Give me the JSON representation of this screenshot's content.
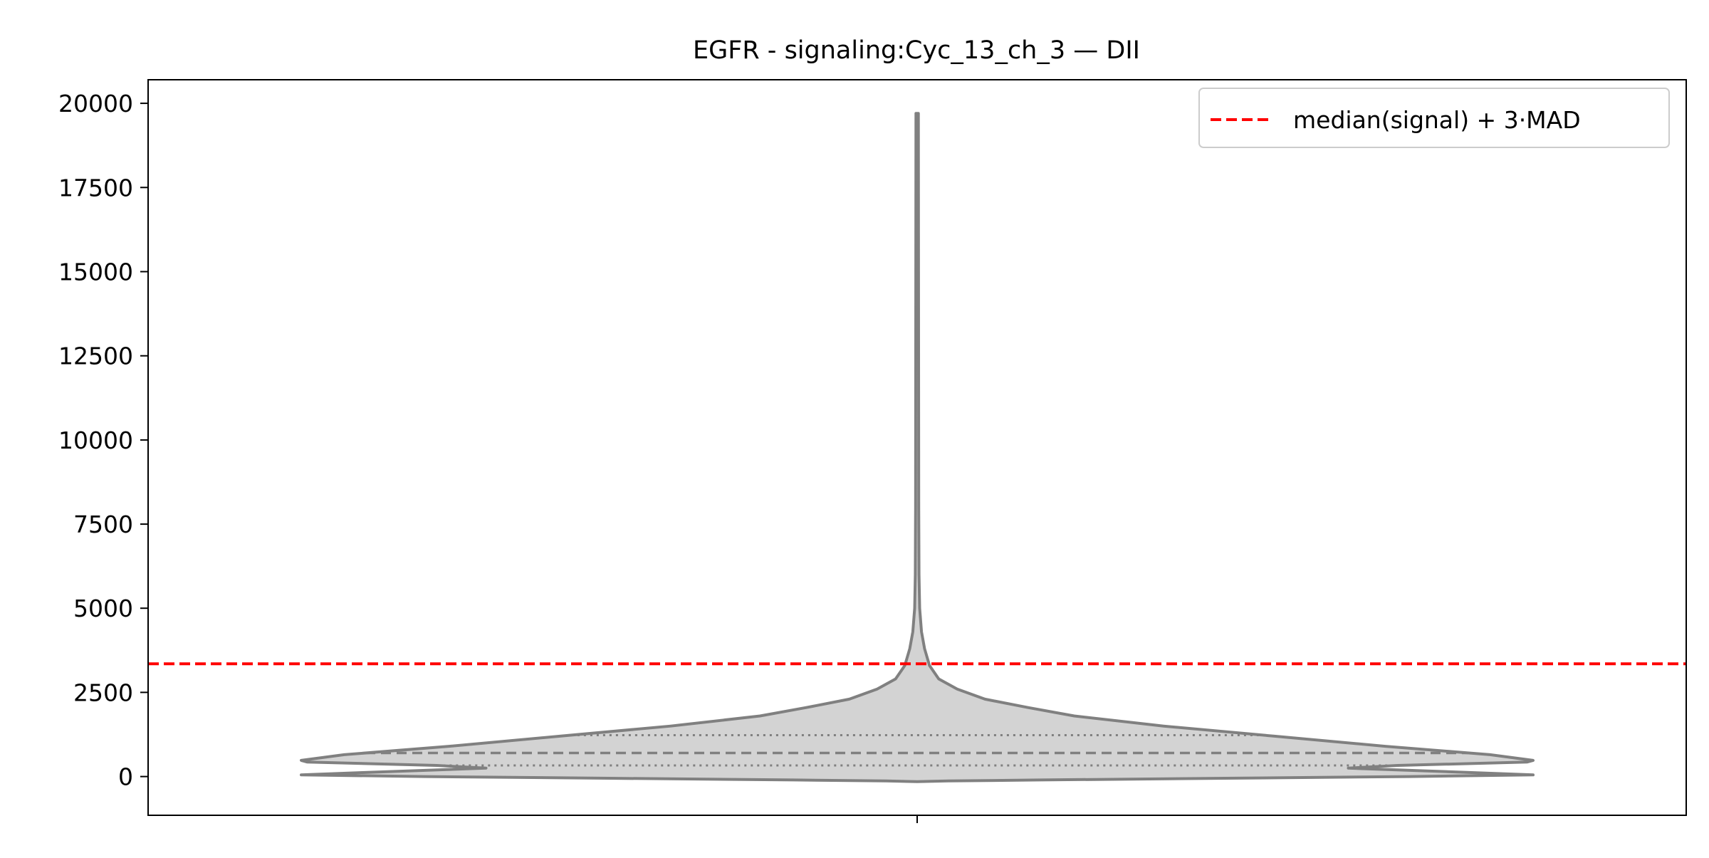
{
  "chart_data": {
    "type": "violin",
    "title": "EGFR - signaling:Cyc_13_ch_3 — DII",
    "xlabel": "",
    "ylabel": "",
    "ylim": [
      -1150,
      20700
    ],
    "yticks": [
      0,
      2500,
      5000,
      7500,
      10000,
      12500,
      15000,
      17500,
      20000
    ],
    "ytick_labels": [
      "0",
      "2500",
      "5000",
      "7500",
      "10000",
      "12500",
      "15000",
      "17500",
      "20000"
    ],
    "grid": false,
    "legend": {
      "position": "top-right",
      "entries": [
        {
          "label": "median(signal) + 3·MAD",
          "style": "dashed",
          "color": "#ff0000"
        }
      ]
    },
    "threshold": {
      "name": "median(signal) + 3·MAD",
      "value": 3350,
      "color": "#ff0000"
    },
    "violin": {
      "fill": "#d3d3d3",
      "edge": "#808080",
      "density_profile": [
        {
          "y": -150,
          "w": 0.0
        },
        {
          "y": -130,
          "w": 0.05
        },
        {
          "y": -100,
          "w": 0.2
        },
        {
          "y": -50,
          "w": 0.5
        },
        {
          "y": 0,
          "w": 0.8
        },
        {
          "y": 50,
          "w": 1.0
        },
        {
          "y": 120,
          "w": 0.9
        },
        {
          "y": 250,
          "w": 0.7
        },
        {
          "y": 330,
          "w": 0.78
        },
        {
          "y": 430,
          "w": 0.99
        },
        {
          "y": 480,
          "w": 1.0
        },
        {
          "y": 650,
          "w": 0.93
        },
        {
          "y": 900,
          "w": 0.76
        },
        {
          "y": 1200,
          "w": 0.58
        },
        {
          "y": 1500,
          "w": 0.4
        },
        {
          "y": 1800,
          "w": 0.255
        },
        {
          "y": 2050,
          "w": 0.18
        },
        {
          "y": 2300,
          "w": 0.11
        },
        {
          "y": 2600,
          "w": 0.065
        },
        {
          "y": 2900,
          "w": 0.035
        },
        {
          "y": 3300,
          "w": 0.02
        },
        {
          "y": 3800,
          "w": 0.012
        },
        {
          "y": 4300,
          "w": 0.007
        },
        {
          "y": 5000,
          "w": 0.004
        },
        {
          "y": 6000,
          "w": 0.003
        },
        {
          "y": 8000,
          "w": 0.0025
        },
        {
          "y": 19700,
          "w": 0.002
        }
      ],
      "quartiles": {
        "q1": 330,
        "median": 700,
        "q3": 1230
      }
    }
  }
}
